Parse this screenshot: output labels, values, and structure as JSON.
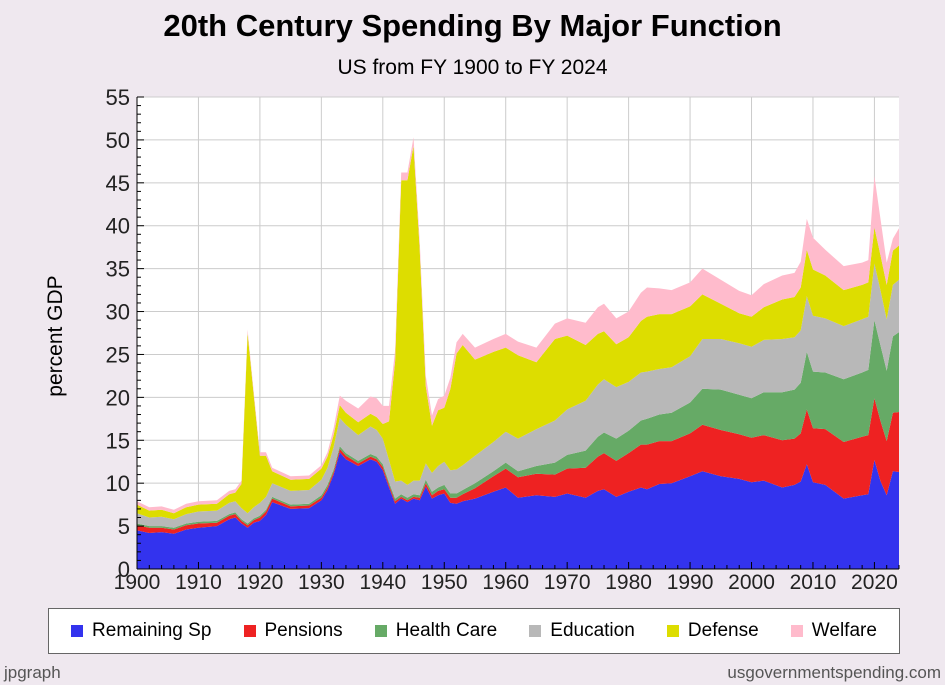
{
  "title": "20th Century Spending By Major Function",
  "subtitle": "US from FY 1900 to FY 2024",
  "footer": {
    "left": "jpgraph",
    "right": "usgovernmentspending.com"
  },
  "chart_data": {
    "type": "area",
    "stacked": true,
    "title": "20th Century Spending By Major Function",
    "subtitle": "US from FY 1900 to FY 2024",
    "xlabel": "",
    "ylabel": "percent GDP",
    "xlim": [
      1900,
      2024
    ],
    "ylim": [
      0,
      55
    ],
    "x_ticks": [
      1900,
      1910,
      1920,
      1930,
      1940,
      1950,
      1960,
      1970,
      1980,
      1990,
      2000,
      2010,
      2020
    ],
    "y_ticks": [
      0,
      5,
      10,
      15,
      20,
      25,
      30,
      35,
      40,
      45,
      50,
      55
    ],
    "grid": true,
    "legend_position": "bottom",
    "x": [
      1900,
      1902,
      1904,
      1906,
      1908,
      1910,
      1913,
      1915,
      1916,
      1917,
      1918,
      1919,
      1920,
      1921,
      1922,
      1925,
      1928,
      1930,
      1931,
      1932,
      1933,
      1934,
      1936,
      1938,
      1939,
      1940,
      1941,
      1942,
      1943,
      1944,
      1945,
      1946,
      1947,
      1948,
      1949,
      1950,
      1951,
      1952,
      1953,
      1955,
      1958,
      1960,
      1962,
      1965,
      1968,
      1970,
      1973,
      1975,
      1976,
      1978,
      1980,
      1982,
      1983,
      1985,
      1987,
      1990,
      1992,
      1995,
      1998,
      2000,
      2002,
      2005,
      2007,
      2008,
      2009,
      2010,
      2012,
      2015,
      2018,
      2019,
      2020,
      2021,
      2022,
      2023,
      2024
    ],
    "series": [
      {
        "name": "Remaining Sp",
        "color": "#3333ee",
        "values": [
          4.5,
          4.2,
          4.3,
          4.1,
          4.6,
          4.8,
          5.0,
          5.8,
          6.0,
          5.3,
          4.8,
          5.4,
          5.6,
          6.3,
          7.8,
          7.0,
          7.1,
          8.0,
          9.2,
          11.0,
          13.6,
          12.8,
          12.0,
          12.8,
          12.5,
          11.5,
          9.5,
          7.6,
          8.2,
          7.8,
          8.2,
          8.0,
          9.6,
          8.2,
          8.6,
          8.8,
          7.7,
          7.6,
          7.9,
          8.2,
          9.0,
          9.5,
          8.3,
          8.6,
          8.4,
          8.8,
          8.3,
          9.1,
          9.3,
          8.4,
          9.0,
          9.5,
          9.3,
          9.9,
          10.0,
          10.8,
          11.4,
          10.8,
          10.5,
          10.1,
          10.3,
          9.5,
          9.8,
          10.2,
          12.2,
          10.1,
          9.8,
          8.2,
          8.6,
          8.7,
          12.7,
          10.2,
          8.6,
          11.4,
          11.3
        ]
      },
      {
        "name": "Pensions",
        "color": "#ee2222",
        "values": [
          0.6,
          0.6,
          0.5,
          0.5,
          0.5,
          0.5,
          0.4,
          0.4,
          0.4,
          0.3,
          0.3,
          0.3,
          0.4,
          0.4,
          0.4,
          0.3,
          0.3,
          0.3,
          0.3,
          0.3,
          0.4,
          0.4,
          0.3,
          0.3,
          0.3,
          0.4,
          0.3,
          0.3,
          0.2,
          0.2,
          0.2,
          0.3,
          0.4,
          0.4,
          0.5,
          0.5,
          0.6,
          0.7,
          0.8,
          1.2,
          1.8,
          2.2,
          2.4,
          2.5,
          2.6,
          2.9,
          3.5,
          4.0,
          4.2,
          4.2,
          4.5,
          5.0,
          5.2,
          5.0,
          4.9,
          5.0,
          5.4,
          5.4,
          5.2,
          5.2,
          5.3,
          5.5,
          5.4,
          5.6,
          6.4,
          6.3,
          6.5,
          6.6,
          6.8,
          6.9,
          7.2,
          7.0,
          6.3,
          6.8,
          7.0
        ]
      },
      {
        "name": "Health Care",
        "color": "#66aa66",
        "values": [
          0.2,
          0.2,
          0.2,
          0.2,
          0.2,
          0.2,
          0.2,
          0.2,
          0.2,
          0.2,
          0.2,
          0.2,
          0.2,
          0.2,
          0.2,
          0.2,
          0.2,
          0.3,
          0.3,
          0.3,
          0.3,
          0.3,
          0.3,
          0.3,
          0.3,
          0.3,
          0.3,
          0.3,
          0.3,
          0.3,
          0.3,
          0.3,
          0.4,
          0.4,
          0.4,
          0.5,
          0.5,
          0.5,
          0.5,
          0.6,
          0.6,
          0.7,
          0.7,
          0.9,
          1.4,
          1.6,
          2.0,
          2.3,
          2.4,
          2.6,
          2.6,
          2.8,
          3.0,
          3.1,
          3.3,
          3.6,
          4.2,
          4.7,
          4.6,
          4.6,
          5.0,
          5.6,
          5.7,
          5.9,
          6.7,
          6.6,
          6.6,
          7.3,
          7.5,
          7.6,
          9.1,
          8.8,
          8.2,
          8.9,
          9.3
        ]
      },
      {
        "name": "Education",
        "color": "#b8b8b8",
        "values": [
          1.2,
          1.0,
          1.1,
          1.0,
          1.1,
          1.2,
          1.2,
          1.3,
          1.3,
          1.3,
          1.2,
          1.3,
          1.5,
          1.5,
          1.6,
          1.6,
          1.6,
          1.8,
          2.0,
          2.6,
          3.3,
          3.3,
          3.0,
          3.2,
          3.1,
          3.0,
          2.6,
          2.0,
          1.6,
          1.5,
          1.6,
          1.7,
          1.9,
          2.2,
          2.5,
          2.7,
          2.7,
          2.8,
          2.9,
          3.2,
          3.4,
          3.6,
          3.8,
          4.3,
          4.9,
          5.3,
          5.8,
          6.1,
          6.2,
          6.0,
          5.7,
          5.6,
          5.5,
          5.3,
          5.3,
          5.4,
          5.8,
          5.9,
          6.0,
          6.0,
          6.1,
          6.2,
          6.1,
          6.1,
          6.5,
          6.5,
          6.3,
          6.2,
          6.2,
          6.2,
          6.6,
          6.4,
          6.0,
          6.0,
          6.1
        ]
      },
      {
        "name": "Defense",
        "color": "#dddd00",
        "values": [
          1.0,
          0.8,
          0.8,
          0.7,
          0.8,
          0.8,
          0.8,
          1.0,
          1.0,
          2.8,
          21.0,
          13.0,
          5.5,
          4.8,
          1.4,
          1.3,
          1.3,
          1.3,
          1.3,
          1.4,
          1.5,
          1.4,
          1.5,
          1.5,
          1.5,
          1.7,
          4.5,
          14.0,
          35.0,
          35.5,
          39.0,
          27.0,
          9.0,
          5.5,
          6.5,
          6.3,
          9.5,
          13.5,
          14.0,
          11.2,
          10.5,
          9.8,
          9.7,
          7.8,
          9.5,
          8.6,
          6.5,
          5.9,
          5.6,
          5.0,
          5.2,
          6.0,
          6.4,
          6.4,
          6.2,
          5.8,
          5.2,
          4.1,
          3.5,
          3.5,
          3.8,
          4.6,
          4.7,
          5.0,
          5.4,
          5.4,
          5.0,
          4.2,
          4.0,
          4.0,
          4.2,
          4.1,
          4.0,
          4.0,
          4.0
        ]
      },
      {
        "name": "Welfare",
        "color": "#ffbbcc",
        "values": [
          0.4,
          0.4,
          0.4,
          0.4,
          0.4,
          0.4,
          0.4,
          0.4,
          0.4,
          0.4,
          0.4,
          0.4,
          0.4,
          0.4,
          0.4,
          0.4,
          0.4,
          0.4,
          0.5,
          0.8,
          1.1,
          1.4,
          1.6,
          2.0,
          2.2,
          2.1,
          1.8,
          1.3,
          0.9,
          0.9,
          1.0,
          1.0,
          1.2,
          1.2,
          1.3,
          1.4,
          1.3,
          1.3,
          1.3,
          1.4,
          1.5,
          1.6,
          1.6,
          1.7,
          1.8,
          2.0,
          2.6,
          3.1,
          3.2,
          3.0,
          3.0,
          3.3,
          3.4,
          3.0,
          2.8,
          2.8,
          3.0,
          2.8,
          2.6,
          2.5,
          2.7,
          2.8,
          2.8,
          3.0,
          3.6,
          3.7,
          3.0,
          2.8,
          2.6,
          2.6,
          6.0,
          4.2,
          2.6,
          1.4,
          2.0
        ]
      }
    ]
  }
}
